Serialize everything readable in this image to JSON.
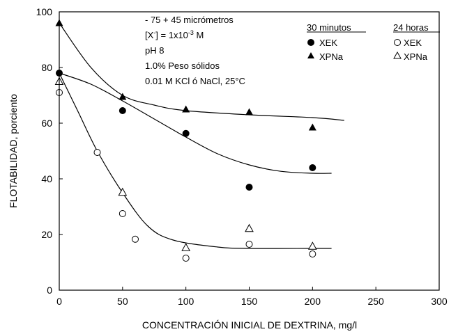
{
  "chart_data": {
    "type": "scatter",
    "title": "",
    "xlabel": "CONCENTRACIÓN INICIAL DE DEXTRINA, mg/l",
    "ylabel": "FLOTABILIDAD, porciento",
    "xlim": [
      0,
      300
    ],
    "ylim": [
      0,
      100
    ],
    "xticks": [
      0,
      50,
      100,
      150,
      200,
      250,
      300
    ],
    "yticks": [
      0,
      20,
      40,
      60,
      80,
      100
    ],
    "grid": false,
    "conditions": {
      "size": "- 75 + 45 micrómetros",
      "conc_prefix": "[X",
      "conc_sup1": "-",
      "conc_mid": "] = 1x10",
      "conc_sup2": "-3",
      "conc_suffix": " M",
      "ph": "pH 8",
      "solids": "1.0% Peso sólidos",
      "salt": "0.01 M KCl ó NaCl, 25°C"
    },
    "legend": {
      "placement": "top-right",
      "group1_title": "30 minutos",
      "group2_title": "24 horas",
      "xek": "XEK",
      "xpna": "XPNa"
    },
    "series": [
      {
        "name": "XEK",
        "group": "30 minutos",
        "marker": "filled-circle",
        "points": [
          [
            0,
            78
          ],
          [
            50,
            64.5
          ],
          [
            100,
            56.3
          ],
          [
            150,
            37
          ],
          [
            200,
            44
          ]
        ]
      },
      {
        "name": "XPNa",
        "group": "30 minutos",
        "marker": "filled-triangle",
        "points": [
          [
            0,
            96
          ],
          [
            50,
            69.5
          ],
          [
            100,
            65
          ],
          [
            150,
            64
          ],
          [
            200,
            58.5
          ]
        ]
      },
      {
        "name": "XEK",
        "group": "24 horas",
        "marker": "open-circle",
        "points": [
          [
            0,
            71
          ],
          [
            30,
            49.5
          ],
          [
            50,
            27.5
          ],
          [
            60,
            18.3
          ],
          [
            100,
            11.5
          ],
          [
            150,
            16.5
          ],
          [
            200,
            13
          ]
        ]
      },
      {
        "name": "XPNa",
        "group": "24 horas",
        "marker": "open-triangle",
        "points": [
          [
            0,
            75
          ],
          [
            50,
            35.2
          ],
          [
            100,
            15.3
          ],
          [
            150,
            22.2
          ],
          [
            200,
            15.8
          ]
        ]
      }
    ],
    "trend_lines": [
      {
        "points": [
          [
            0,
            96
          ],
          [
            25,
            80
          ],
          [
            50,
            70
          ],
          [
            75,
            66.5
          ],
          [
            100,
            64.5
          ],
          [
            150,
            63
          ],
          [
            200,
            62
          ],
          [
            225,
            61
          ]
        ]
      },
      {
        "points": [
          [
            0,
            78
          ],
          [
            25,
            74
          ],
          [
            50,
            68
          ],
          [
            75,
            61.5
          ],
          [
            100,
            55
          ],
          [
            125,
            49
          ],
          [
            150,
            45
          ],
          [
            175,
            42.7
          ],
          [
            200,
            42
          ],
          [
            215,
            42
          ]
        ]
      },
      {
        "points": [
          [
            0,
            78
          ],
          [
            15,
            64
          ],
          [
            30,
            50
          ],
          [
            50,
            35
          ],
          [
            70,
            23
          ],
          [
            90,
            18
          ],
          [
            125,
            15.5
          ],
          [
            150,
            15
          ],
          [
            200,
            15
          ],
          [
            215,
            15
          ]
        ]
      }
    ]
  }
}
